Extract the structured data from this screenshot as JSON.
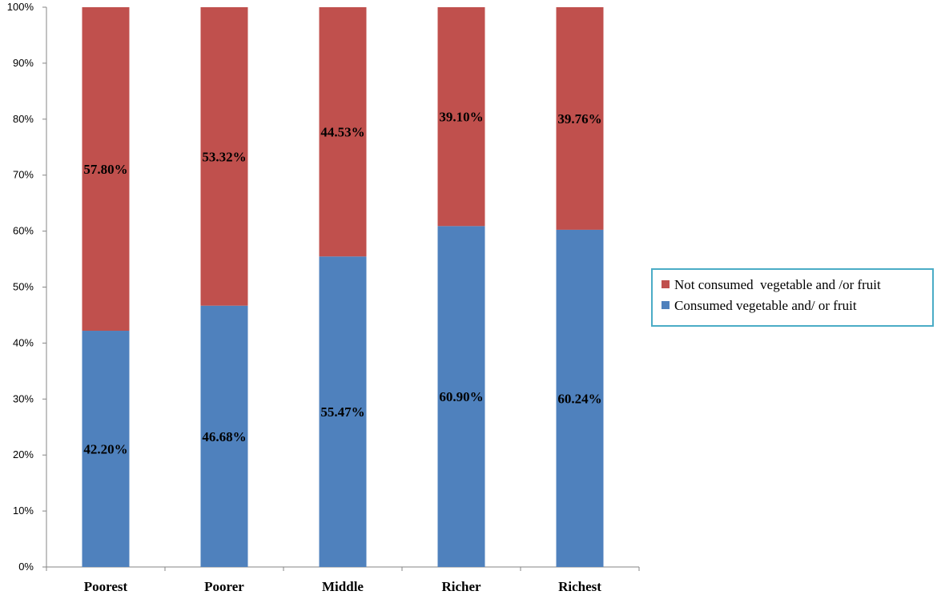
{
  "chart_data": {
    "type": "bar",
    "stacked": true,
    "categories": [
      "Poorest",
      "Poorer",
      "Middle",
      "Richer",
      "Richest"
    ],
    "series": [
      {
        "name": "Consumed vegetable and/ or fruit",
        "values": [
          42.2,
          46.68,
          55.47,
          60.9,
          60.24
        ],
        "labels": [
          "42.20%",
          "46.68%",
          "55.47%",
          "60.90%",
          "60.24%"
        ],
        "color": "#4f81bd"
      },
      {
        "name": "Not consumed  vegetable and /or fruit",
        "values": [
          57.8,
          53.32,
          44.53,
          39.1,
          39.76
        ],
        "labels": [
          "57.80%",
          "53.32%",
          "44.53%",
          "39.10%",
          "39.76%"
        ],
        "color": "#c0504d"
      }
    ],
    "y_ticks": [
      "0%",
      "10%",
      "20%",
      "30%",
      "40%",
      "50%",
      "60%",
      "70%",
      "80%",
      "90%",
      "100%"
    ],
    "ylim": [
      0,
      100
    ],
    "grid": false,
    "legend_position": "right",
    "legend_order": [
      1,
      0
    ],
    "legend_border_color": "#4bacc6",
    "title": "",
    "xlabel": "",
    "ylabel": ""
  }
}
